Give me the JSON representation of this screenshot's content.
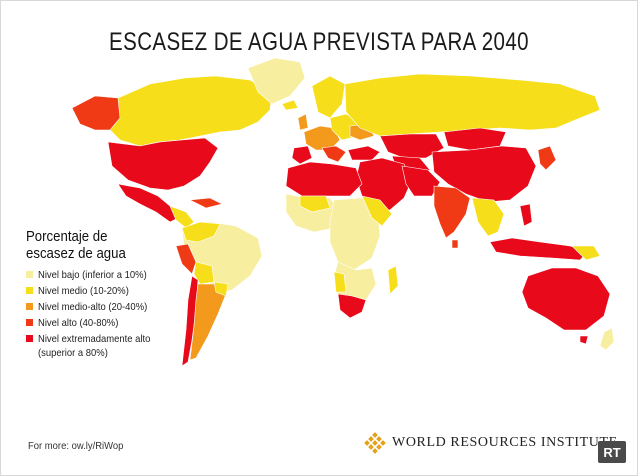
{
  "title": "ESCASEZ DE AGUA PREVISTA PARA 2040",
  "colors": {
    "low": "#f7eea0",
    "medium": "#f6df1a",
    "medium_high": "#f39a1c",
    "high": "#f03a16",
    "extreme": "#e8091a",
    "border": "#ffffff"
  },
  "legend": {
    "heading_line1": "Porcentaje de",
    "heading_line2": "escasez de agua",
    "items": [
      {
        "label": "Nivel bajo (inferior a 10%)",
        "color": "#f7eea0"
      },
      {
        "label": "Nivel medio (10-20%)",
        "color": "#f6df1a"
      },
      {
        "label": "Nivel medio-alto (20-40%)",
        "color": "#f39a1c"
      },
      {
        "label": "Nivel alto (40-80%)",
        "color": "#f03a16"
      },
      {
        "label": "Nivel extremadamente alto",
        "label2": "(superior a 80%)",
        "color": "#e8091a"
      }
    ]
  },
  "footer": {
    "more": "For more: ow.ly/RiWop",
    "org": "WORLD RESOURCES INSTITUTE",
    "org_icon": "wri-diamond-logo-icon",
    "watermark": "RT"
  }
}
